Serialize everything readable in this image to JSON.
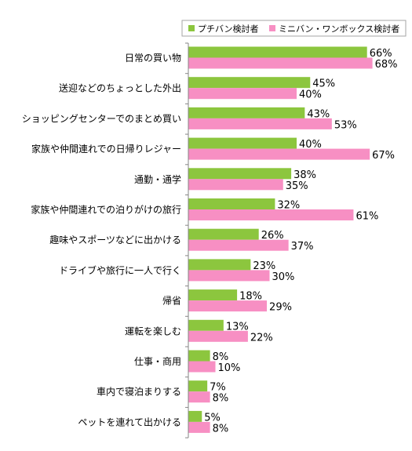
{
  "chart_data": {
    "type": "bar",
    "orientation": "horizontal",
    "title": "",
    "xlabel": "",
    "ylabel": "",
    "value_suffix": "%",
    "xlim": [
      0,
      75
    ],
    "grid": false,
    "legend_position": "top-right",
    "categories": [
      "日常の買い物",
      "送迎などのちょっとした外出",
      "ショッピングセンターでのまとめ買い",
      "家族や仲間連れでの日帰りレジャー",
      "通勤・通学",
      "家族や仲間連れでの泊りがけの旅行",
      "趣味やスポーツなどに出かける",
      "ドライブや旅行に一人で行く",
      "帰省",
      "運転を楽しむ",
      "仕事・商用",
      "車内で寝泊まりする",
      "ペットを連れて出かける"
    ],
    "series": [
      {
        "name": "プチバン検討者",
        "color": "#8cc63e",
        "values": [
          66,
          45,
          43,
          40,
          38,
          32,
          26,
          23,
          18,
          13,
          8,
          7,
          5
        ]
      },
      {
        "name": "ミニバン・ワンボックス検討者",
        "color": "#f78fc3",
        "values": [
          68,
          40,
          53,
          67,
          35,
          61,
          37,
          30,
          29,
          22,
          10,
          8,
          8
        ]
      }
    ]
  }
}
